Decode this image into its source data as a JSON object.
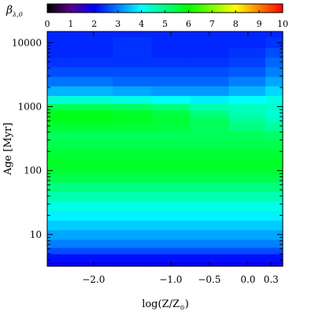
{
  "chart_data": {
    "type": "heatmap",
    "colorbar": {
      "label_symbol": "β",
      "label_subscript": "λ,0",
      "range": [
        0,
        10
      ],
      "ticks": [
        "0",
        "1",
        "2",
        "3",
        "4",
        "5",
        "6",
        "7",
        "8",
        "9",
        "10"
      ]
    },
    "xlabel": "log(Z/Z",
    "xlabel_subscript": "⊙",
    "xlabel_close": ")",
    "xlim": [
      -2.6,
      0.45
    ],
    "xticks": [
      {
        "value": -2.0,
        "label": "−2.0"
      },
      {
        "value": -1.0,
        "label": "−1.0"
      },
      {
        "value": -0.5,
        "label": "−0.5"
      },
      {
        "value": 0.0,
        "label": "0.0"
      },
      {
        "value": 0.3,
        "label": "0.3"
      }
    ],
    "ylabel": "Age [Myr]",
    "yscale": "log",
    "ylim": [
      3.2,
      15000
    ],
    "yticks": [
      {
        "value": 10,
        "label": "10"
      },
      {
        "value": 100,
        "label": "100"
      },
      {
        "value": 1000,
        "label": "1000"
      },
      {
        "value": 10000,
        "label": "10000"
      }
    ],
    "log_age_grid": [
      0.5,
      0.65,
      0.75,
      0.85,
      1.0,
      1.15,
      1.3,
      1.45,
      1.6,
      1.75,
      1.9,
      2.0,
      2.1,
      2.25,
      2.4,
      2.55,
      2.7,
      2.8,
      2.9,
      3.0,
      3.1,
      3.25,
      3.4,
      3.55,
      3.7,
      3.85,
      4.0,
      4.18
    ],
    "metallicity_grid": [
      -2.6,
      -2.0,
      -1.5,
      -1.0,
      -0.5,
      0.0,
      0.45
    ],
    "values": [
      [
        1.9,
        1.9,
        1.9,
        1.9,
        1.9,
        1.9,
        1.9
      ],
      [
        2.1,
        2.1,
        2.1,
        2.1,
        2.1,
        2.1,
        2.1
      ],
      [
        2.6,
        2.6,
        2.6,
        2.6,
        2.6,
        2.6,
        2.6
      ],
      [
        3.0,
        3.0,
        3.0,
        3.0,
        3.0,
        3.0,
        3.0
      ],
      [
        3.3,
        3.3,
        3.3,
        3.3,
        3.3,
        3.3,
        3.3
      ],
      [
        3.6,
        3.6,
        3.6,
        3.6,
        3.6,
        3.6,
        3.6
      ],
      [
        3.9,
        3.9,
        3.9,
        3.9,
        3.9,
        3.9,
        3.9
      ],
      [
        4.2,
        4.2,
        4.2,
        4.2,
        4.2,
        4.2,
        4.2
      ],
      [
        4.6,
        4.6,
        4.6,
        4.6,
        4.6,
        4.6,
        4.6
      ],
      [
        5.0,
        5.0,
        5.0,
        5.0,
        5.0,
        5.0,
        5.0
      ],
      [
        5.4,
        5.4,
        5.4,
        5.4,
        5.4,
        5.4,
        5.4
      ],
      [
        5.6,
        5.6,
        5.6,
        5.6,
        5.6,
        5.6,
        5.6
      ],
      [
        5.7,
        5.7,
        5.7,
        5.7,
        5.7,
        5.7,
        5.7
      ],
      [
        5.6,
        5.6,
        5.6,
        5.6,
        5.6,
        5.6,
        5.6
      ],
      [
        5.4,
        5.4,
        5.4,
        5.4,
        5.4,
        5.4,
        5.4
      ],
      [
        5.3,
        5.3,
        5.3,
        5.3,
        5.3,
        5.3,
        5.2
      ],
      [
        5.6,
        5.6,
        5.6,
        5.5,
        5.3,
        5.0,
        4.8
      ],
      [
        5.8,
        5.8,
        5.7,
        5.6,
        5.3,
        4.8,
        4.5
      ],
      [
        5.8,
        5.8,
        5.7,
        5.5,
        5.0,
        4.6,
        4.3
      ],
      [
        5.3,
        5.3,
        5.2,
        5.0,
        4.6,
        4.5,
        4.4
      ],
      [
        4.3,
        4.3,
        4.2,
        4.0,
        3.9,
        4.0,
        4.2
      ],
      [
        3.4,
        3.4,
        3.3,
        3.2,
        3.2,
        3.4,
        3.7
      ],
      [
        2.9,
        2.9,
        2.8,
        2.8,
        2.8,
        3.0,
        3.3
      ],
      [
        2.6,
        2.6,
        2.6,
        2.6,
        2.6,
        2.7,
        3.0
      ],
      [
        2.4,
        2.4,
        2.4,
        2.4,
        2.4,
        2.5,
        2.8
      ],
      [
        2.3,
        2.3,
        2.4,
        2.3,
        2.3,
        2.4,
        2.6
      ],
      [
        2.3,
        2.3,
        2.4,
        2.3,
        2.3,
        2.3,
        2.4
      ],
      [
        2.3,
        2.3,
        2.3,
        2.3,
        2.3,
        2.3,
        2.3
      ]
    ],
    "colormap": [
      "#000000",
      "#5a008c",
      "#0000ff",
      "#00ffff",
      "#00ff00",
      "#ffff00",
      "#ff0000"
    ],
    "colormap_stops": [
      0,
      1,
      2,
      4,
      6,
      8,
      10
    ],
    "grid": false,
    "legend": "colorbar-top"
  }
}
